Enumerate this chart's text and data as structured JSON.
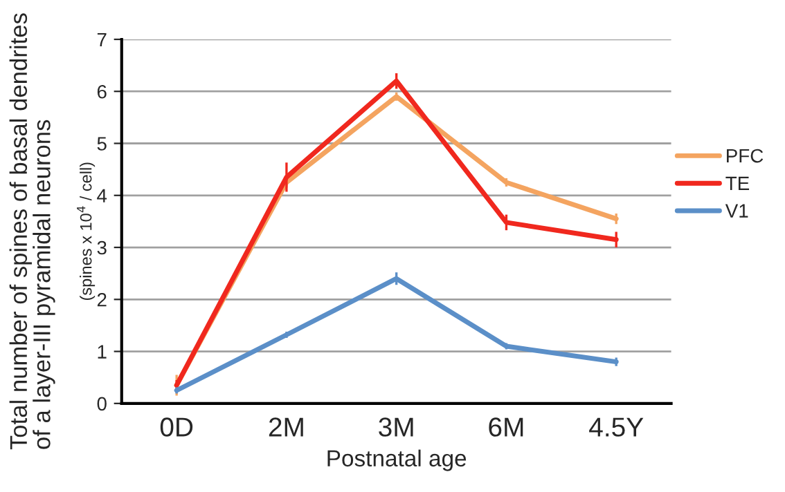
{
  "chart_data": {
    "type": "line",
    "xlabel": "Postnatal age",
    "ylabel": "Total number of spines of basal dendrites\nof a layer-III pyramidal neurons\n(spines x 10$^{4}$ / cell)",
    "categories": [
      "0D",
      "2M",
      "3M",
      "6M",
      "4.5Y"
    ],
    "series": [
      {
        "name": "PFC",
        "color": "#f4a460",
        "values": [
          0.35,
          4.25,
          5.9,
          4.25,
          3.55
        ],
        "errors": [
          0.2,
          0.1,
          0.08,
          0.08,
          0.1
        ]
      },
      {
        "name": "TE",
        "color": "#f0281e",
        "values": [
          0.35,
          4.35,
          6.2,
          3.48,
          3.15
        ],
        "errors": [
          0.1,
          0.28,
          0.15,
          0.15,
          0.15
        ]
      },
      {
        "name": "V1",
        "color": "#5b8fc8",
        "values": [
          0.25,
          1.32,
          2.4,
          1.1,
          0.8
        ],
        "errors": [
          0.06,
          0.06,
          0.12,
          0.06,
          0.08
        ]
      }
    ],
    "ylim": [
      0,
      7
    ],
    "yticks": [
      0,
      1,
      2,
      3,
      4,
      5,
      6,
      7
    ],
    "grid": "y",
    "legend": "right",
    "marker": "none",
    "line_style": "solid"
  }
}
